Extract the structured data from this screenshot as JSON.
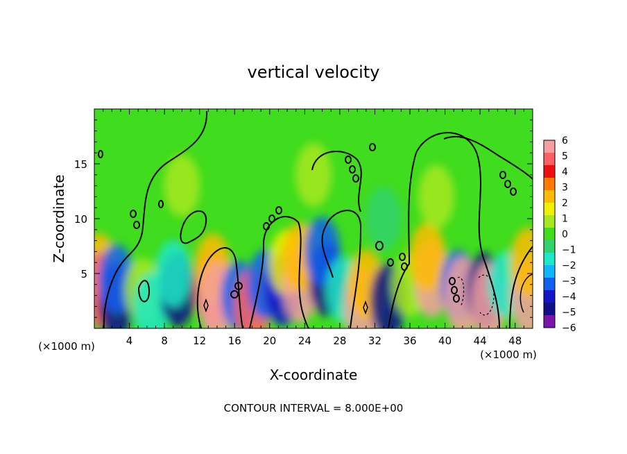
{
  "chart_data": {
    "type": "heatmap",
    "title": "vertical velocity",
    "xlabel": "X-coordinate",
    "ylabel": "Z-coordinate",
    "x_unit_left": "(×1000 m)",
    "x_unit_right": "(×1000 m)",
    "xlim": [
      0,
      50
    ],
    "ylim": [
      0,
      20
    ],
    "x_ticks": [
      {
        "value": 4,
        "label": "4"
      },
      {
        "value": 8,
        "label": "8"
      },
      {
        "value": 12,
        "label": "12"
      },
      {
        "value": 16,
        "label": "16"
      },
      {
        "value": 20,
        "label": "20"
      },
      {
        "value": 24,
        "label": "24"
      },
      {
        "value": 28,
        "label": "28"
      },
      {
        "value": 32,
        "label": "32"
      },
      {
        "value": 36,
        "label": "36"
      },
      {
        "value": 40,
        "label": "40"
      },
      {
        "value": 44,
        "label": "44"
      },
      {
        "value": 48,
        "label": "48"
      }
    ],
    "y_ticks": [
      {
        "value": 5,
        "label": "5"
      },
      {
        "value": 10,
        "label": "10"
      },
      {
        "value": 15,
        "label": "15"
      }
    ],
    "colorbar": {
      "labels": [
        "6",
        "5",
        "4",
        "3",
        "2",
        "1",
        "0",
        "−1",
        "−2",
        "−3",
        "−4",
        "−5",
        "−6"
      ],
      "colors": [
        "#f4a0a0",
        "#ff6060",
        "#ee1010",
        "#ff7a00",
        "#ffbb00",
        "#f0f000",
        "#a8e81e",
        "#40dc1e",
        "#32d26c",
        "#1ee8c8",
        "#10b4ff",
        "#1060f0",
        "#1414c8",
        "#10108a",
        "#7a14aa"
      ]
    },
    "cells": [
      {
        "x": 0.5,
        "z": 5.5,
        "v": 3
      },
      {
        "x": 0.5,
        "z": 3.5,
        "v": 5
      },
      {
        "x": 2.5,
        "z": 2.5,
        "v": -5
      },
      {
        "x": 2.5,
        "z": 4.5,
        "v": -3
      },
      {
        "x": 5.5,
        "z": 3.5,
        "v": 1
      },
      {
        "x": 6.5,
        "z": 2.0,
        "v": -2
      },
      {
        "x": 9.5,
        "z": 3.5,
        "v": -5
      },
      {
        "x": 9.0,
        "z": 5.0,
        "v": -2
      },
      {
        "x": 13.5,
        "z": 3.5,
        "v": 5
      },
      {
        "x": 13.5,
        "z": 5.5,
        "v": 3
      },
      {
        "x": 14.0,
        "z": 2.5,
        "v": 6
      },
      {
        "x": 16.5,
        "z": 3.0,
        "v": -3
      },
      {
        "x": 18.0,
        "z": 2.0,
        "v": 5
      },
      {
        "x": 19.5,
        "z": 4.0,
        "v": -3
      },
      {
        "x": 21.5,
        "z": 3.5,
        "v": -4
      },
      {
        "x": 22.0,
        "z": 6.0,
        "v": 2
      },
      {
        "x": 23.5,
        "z": 4.0,
        "v": 6
      },
      {
        "x": 23.5,
        "z": 6.5,
        "v": 3
      },
      {
        "x": 26.5,
        "z": 4.5,
        "v": -5
      },
      {
        "x": 26.0,
        "z": 7.0,
        "v": -3
      },
      {
        "x": 28.5,
        "z": 3.5,
        "v": -2
      },
      {
        "x": 30.5,
        "z": 2.0,
        "v": 6
      },
      {
        "x": 31.0,
        "z": 4.0,
        "v": 3
      },
      {
        "x": 33.5,
        "z": 2.5,
        "v": -5
      },
      {
        "x": 36.0,
        "z": 4.0,
        "v": 1
      },
      {
        "x": 38.5,
        "z": 4.5,
        "v": 6
      },
      {
        "x": 38.0,
        "z": 6.5,
        "v": 3
      },
      {
        "x": 41.5,
        "z": 4.0,
        "v": -3
      },
      {
        "x": 42.0,
        "z": 3.0,
        "v": 6
      },
      {
        "x": 44.5,
        "z": 3.5,
        "v": -5
      },
      {
        "x": 45.0,
        "z": 2.5,
        "v": 6
      },
      {
        "x": 47.0,
        "z": 4.0,
        "v": -2
      },
      {
        "x": 49.5,
        "z": 3.0,
        "v": 6
      },
      {
        "x": 49.5,
        "z": 6.0,
        "v": 3
      },
      {
        "x": 25.0,
        "z": 14.0,
        "v": 1
      },
      {
        "x": 39.0,
        "z": 12.0,
        "v": 1
      },
      {
        "x": 10.0,
        "z": 13.0,
        "v": 0.5
      },
      {
        "x": 33.0,
        "z": 10.0,
        "v": -1
      }
    ],
    "contour_interval_text": "CONTOUR INTERVAL = 8.000E+00",
    "grid": false,
    "legend": "right"
  }
}
